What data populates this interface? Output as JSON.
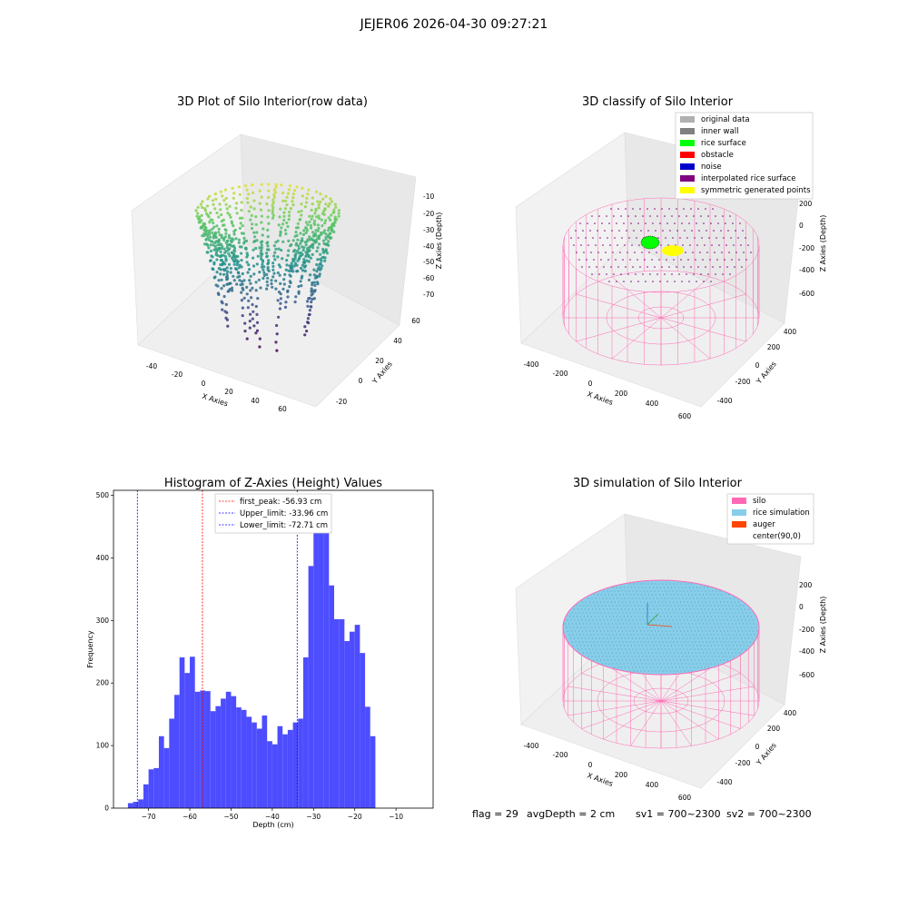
{
  "figure": {
    "suptitle": "JEJER06 2026-04-30 09:27:21"
  },
  "colors": {
    "original_data": "#b0b0b0",
    "inner_wall": "#808080",
    "rice_surface": "#00ff00",
    "obstacle": "#ff0000",
    "noise": "#0000cc",
    "interpolated_rice_surface": "#800080",
    "symmetric_generated_points": "#ffff00",
    "silo": "#ff69b4",
    "rice_simulation": "#87ceeb",
    "auger": "#ff4500",
    "histogram_bar": "#4d4dff"
  },
  "chart_data": [
    {
      "type": "scatter",
      "title": "3D Plot of Silo Interior(row data)",
      "xlabel": "X Axies",
      "ylabel": "Y Axies",
      "zlabel": "Z Axies (Depth)",
      "x_ticks": [
        "-40",
        "-20",
        "0",
        "20",
        "40",
        "60"
      ],
      "y_ticks": [
        "-20",
        "0",
        "20",
        "40",
        "60"
      ],
      "z_ticks": [
        "-10",
        "-20",
        "-30",
        "-40",
        "-50",
        "-60",
        "-70"
      ],
      "xlim": [
        -50,
        70
      ],
      "ylim": [
        -30,
        60
      ],
      "zlim": [
        -80,
        -5
      ],
      "colormap": "viridis"
    },
    {
      "type": "scatter",
      "title": "3D classify of Silo Interior",
      "xlabel": "X Axies",
      "ylabel": "Y Axies",
      "zlabel": "Z Axies (Depth)",
      "x_ticks": [
        "-400",
        "-200",
        "0",
        "200",
        "400",
        "600"
      ],
      "y_ticks": [
        "-400",
        "-200",
        "0",
        "200",
        "400"
      ],
      "z_ticks": [
        "200",
        "0",
        "-200",
        "-400",
        "-600"
      ],
      "legend": [
        "original data",
        "inner wall",
        "rice surface",
        "obstacle",
        "noise",
        "interpolated rice surface",
        "symmetric generated points"
      ],
      "legend_loc": "upper-right"
    },
    {
      "type": "bar",
      "title": "Histogram of Z-Axies (Height) Values",
      "xlabel": "Depth (cm)",
      "ylabel": "Frequency",
      "xlim": [
        -78.5,
        -1
      ],
      "ylim": [
        0,
        508
      ],
      "x_ticks": [
        -70,
        -60,
        -50,
        -40,
        -30,
        -20,
        -10
      ],
      "x_tick_labels": [
        "−70",
        "−60",
        "−50",
        "−40",
        "−30",
        "−20",
        "−10"
      ],
      "y_ticks": [
        0,
        100,
        200,
        300,
        400,
        500
      ],
      "y_tick_labels": [
        "0",
        "100",
        "200",
        "300",
        "400",
        "500"
      ],
      "bin_start": -75,
      "bin_width": 1.25,
      "values": [
        8,
        10,
        14,
        38,
        62,
        64,
        115,
        96,
        143,
        181,
        241,
        216,
        242,
        186,
        188,
        187,
        155,
        163,
        175,
        186,
        179,
        161,
        157,
        146,
        137,
        127,
        148,
        107,
        102,
        131,
        118,
        125,
        137,
        143,
        241,
        387,
        469,
        482,
        464,
        356,
        302,
        302,
        267,
        282,
        293,
        248,
        162,
        115
      ],
      "vlines": [
        {
          "label": "first_peak: -56.93 cm",
          "x": -56.93,
          "color": "#ff0000"
        },
        {
          "label": "Upper_limit: -33.96 cm",
          "x": -33.96,
          "color": "#0000ff"
        },
        {
          "label": "Lower_limit: -72.71 cm",
          "x": -72.71,
          "color": "#0000ff"
        }
      ],
      "legend_loc": "upper-center"
    },
    {
      "type": "scatter",
      "title": "3D simulation of Silo Interior",
      "xlabel": "X Axies",
      "ylabel": "Y Axies",
      "zlabel": "Z Axies (Depth)",
      "x_ticks": [
        "-400",
        "-200",
        "0",
        "200",
        "400",
        "600"
      ],
      "y_ticks": [
        "-400",
        "-200",
        "0",
        "200",
        "400"
      ],
      "z_ticks": [
        "200",
        "0",
        "-200",
        "-400",
        "-600"
      ],
      "legend": [
        "silo",
        "rice simulation",
        "auger",
        "center(90,0)"
      ],
      "legend_loc": "upper-right"
    }
  ],
  "status": {
    "flag": "flag = 29",
    "avg_depth": "avgDepth = 2 cm",
    "sv1": "sv1 = 700~2300",
    "sv2": "sv2 = 700~2300"
  }
}
